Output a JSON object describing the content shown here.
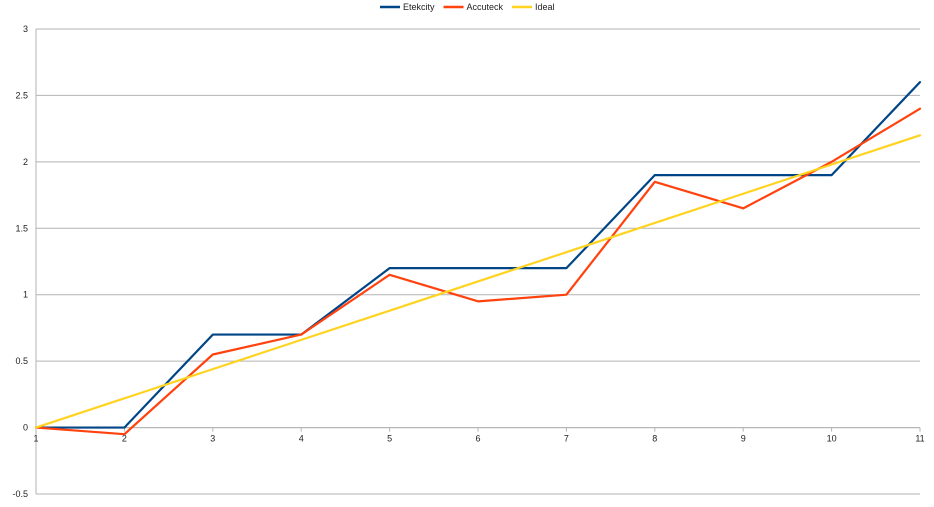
{
  "chart_data": {
    "type": "line",
    "title": "",
    "xlabel": "",
    "ylabel": "",
    "x": [
      1,
      2,
      3,
      4,
      5,
      6,
      7,
      8,
      9,
      10,
      11
    ],
    "x_tick_labels": [
      "1",
      "2",
      "3",
      "4",
      "5",
      "6",
      "7",
      "8",
      "9",
      "10",
      "11"
    ],
    "ylim": [
      -0.5,
      3
    ],
    "y_ticks": [
      -0.5,
      0,
      0.5,
      1,
      1.5,
      2,
      2.5,
      3
    ],
    "y_tick_labels": [
      "-0.5",
      "0",
      "0.5",
      "1",
      "1.5",
      "2",
      "2.5",
      "3"
    ],
    "grid": true,
    "legend_position": "top-center",
    "series": [
      {
        "name": "Etekcity",
        "color": "#004586",
        "values": [
          0,
          0,
          0.7,
          0.7,
          1.2,
          1.2,
          1.2,
          1.9,
          1.9,
          1.9,
          2.6
        ]
      },
      {
        "name": "Accuteck",
        "color": "#ff420e",
        "values": [
          0,
          -0.05,
          0.55,
          0.7,
          1.15,
          0.95,
          1.0,
          1.85,
          1.65,
          2.0,
          2.4
        ]
      },
      {
        "name": "Ideal",
        "color": "#ffd320",
        "values": [
          0,
          0.22,
          0.44,
          0.66,
          0.88,
          1.1,
          1.32,
          1.54,
          1.76,
          1.98,
          2.2
        ]
      }
    ]
  }
}
